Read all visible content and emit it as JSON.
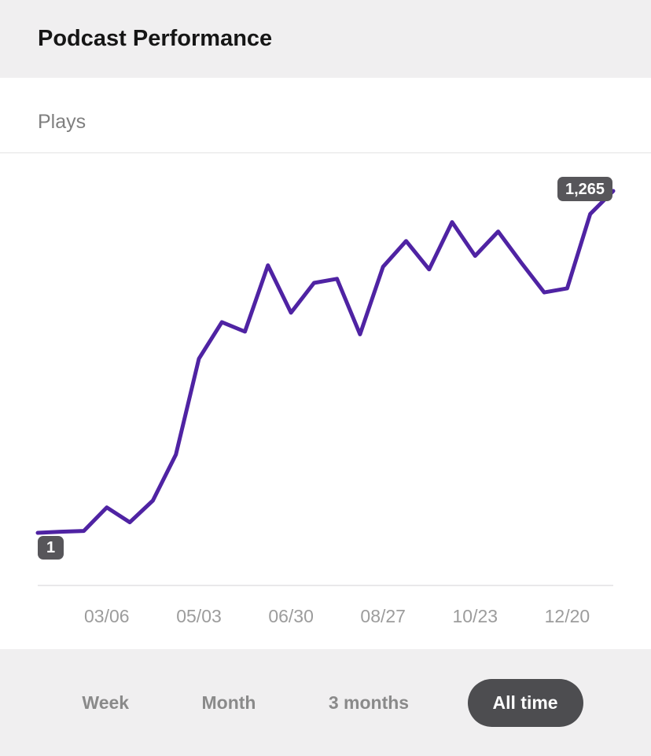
{
  "header": {
    "title": "Podcast Performance"
  },
  "metric": {
    "label": "Plays"
  },
  "chart_data": {
    "type": "line",
    "title": "Plays",
    "series_name": "Plays",
    "values": [
      1,
      5,
      8,
      95,
      40,
      120,
      290,
      645,
      780,
      745,
      990,
      815,
      925,
      940,
      735,
      985,
      1080,
      975,
      1150,
      1025,
      1115,
      1000,
      890,
      905,
      1180,
      1265
    ],
    "tick_labels": [
      {
        "index": 3,
        "label": "03/06"
      },
      {
        "index": 7,
        "label": "05/03"
      },
      {
        "index": 11,
        "label": "06/30"
      },
      {
        "index": 15,
        "label": "08/27"
      },
      {
        "index": 19,
        "label": "10/23"
      },
      {
        "index": 23,
        "label": "12/20"
      }
    ],
    "start_badge": "1",
    "end_badge": "1,265",
    "ylim": [
      1,
      1265
    ],
    "grid": false,
    "legend": "none",
    "line_color": "#4f23a3"
  },
  "footer": {
    "ranges": [
      {
        "label": "Week",
        "selected": false
      },
      {
        "label": "Month",
        "selected": false
      },
      {
        "label": "3 months",
        "selected": false
      },
      {
        "label": "All time",
        "selected": true
      }
    ]
  },
  "colors": {
    "line": "#4f23a3",
    "badge_bg": "#57565a",
    "selected_range_bg": "#4d4d50",
    "panel_bg": "#f0eff0",
    "tick_text": "#9c9c9c"
  }
}
